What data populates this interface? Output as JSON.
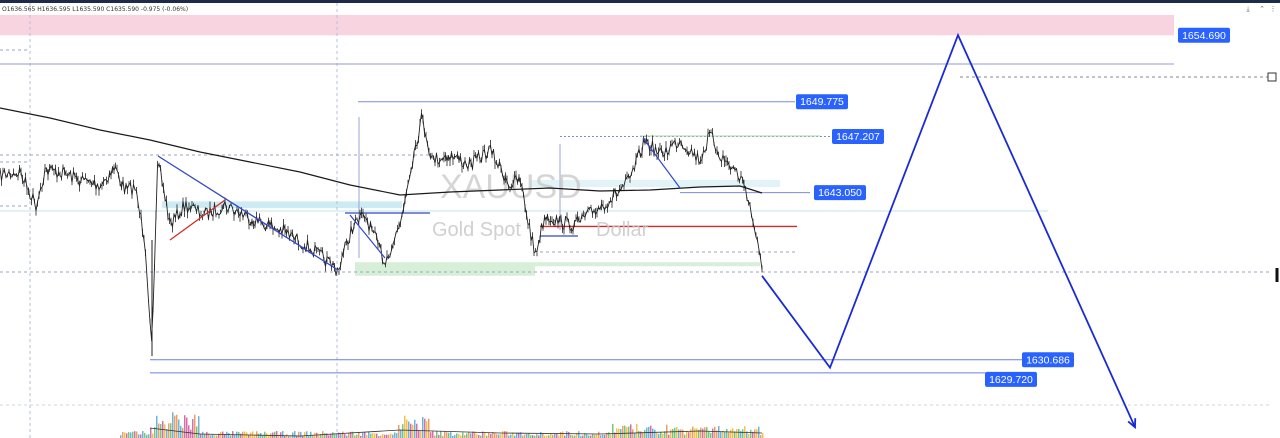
{
  "header": {
    "ohlc_text": "O1636.565  H1636.595  L1635.590  C1635.590  -0.975  (-0.06%)"
  },
  "watermark": {
    "symbol": "XAUUSD",
    "description": "Gold Spot",
    "description_tail": "Dollar"
  },
  "colors": {
    "blue_label": "#2962ff",
    "projection": "#1a2bd6",
    "supply_zone": "#f8d3e0",
    "demand_zone": "#d6efd6",
    "cyan_zone": "#cdebf2",
    "moving_average": "#1a1a1a",
    "red_level": "#d12a2a",
    "price_candles": "#222222"
  },
  "chart_data": {
    "type": "line",
    "title": "",
    "ylim": [
      1624.9,
      1657.3
    ],
    "xlim": [
      0,
      1280
    ],
    "price_labels": [
      {
        "text": "1654.690",
        "value": 1654.69
      },
      {
        "text": "1649.775",
        "value": 1649.775
      },
      {
        "text": "1647.207",
        "value": 1647.207
      },
      {
        "text": "1643.050",
        "value": 1643.05
      },
      {
        "text": "1630.686",
        "value": 1630.686
      },
      {
        "text": "1629.720",
        "value": 1629.72
      }
    ],
    "zones": [
      {
        "name": "supply",
        "y_range": [
          1654.69,
          1656.2
        ]
      },
      {
        "name": "demand",
        "y_range": [
          1636.9,
          1637.9
        ]
      },
      {
        "name": "cyan",
        "y_range": [
          1641.9,
          1642.4
        ]
      }
    ],
    "projection": {
      "x": [
        762,
        830,
        958,
        1135
      ],
      "y": [
        1636.9,
        1630.1,
        1654.7,
        1625.7
      ]
    },
    "levels": [
      {
        "name": "red_level",
        "value": 1640.55
      },
      {
        "name": "1643_level",
        "value": 1643.05
      },
      {
        "name": "1649_level",
        "value": 1649.775
      },
      {
        "name": "1647_level",
        "value": 1647.207
      }
    ]
  }
}
